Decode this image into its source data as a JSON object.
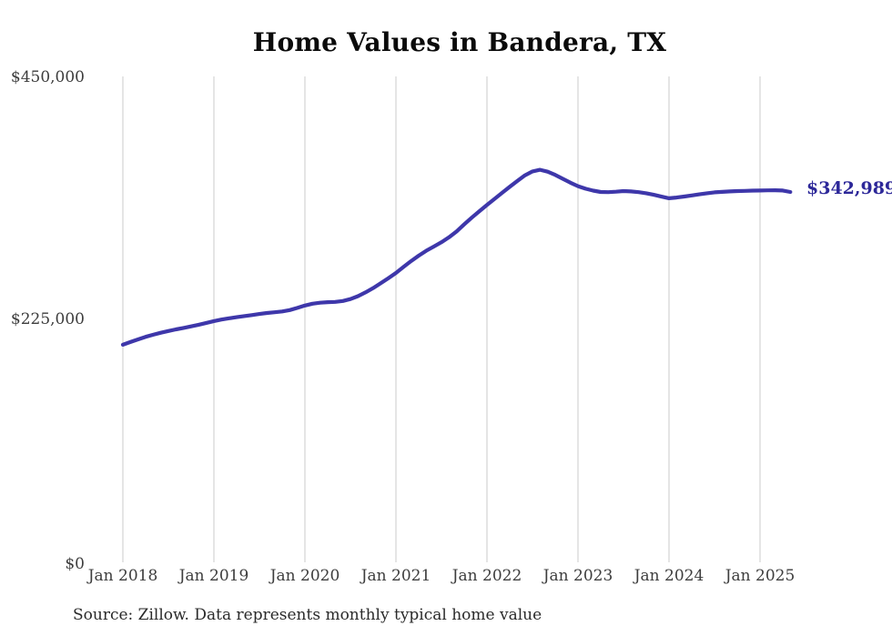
{
  "chart_data": {
    "type": "line",
    "title": "Home Values in Bandera, TX",
    "source_note": "Source: Zillow. Data represents monthly typical home value",
    "end_label": "$342,989",
    "latest_value": 342989,
    "ylim": [
      0,
      450000
    ],
    "y_tick_labels": [
      "$0",
      "$225,000",
      "$450,000"
    ],
    "x_tick_labels": [
      "Jan 2018",
      "Jan 2019",
      "Jan 2020",
      "Jan 2021",
      "Jan 2022",
      "Jan 2023",
      "Jan 2024",
      "Jan 2025"
    ],
    "grid": "vertical-only",
    "legend": "none",
    "colors": {
      "line": "#3e37aa",
      "end_label": "#2d2899",
      "gridline": "#cbcbcb",
      "tick_text": "#3d3d3d"
    },
    "series": [
      {
        "name": "Typical home value (USD)",
        "start": "2018-01",
        "interval": "monthly",
        "end": "2025-05",
        "values": [
          201500,
          204000,
          206500,
          208800,
          210800,
          212600,
          214200,
          215700,
          217100,
          218500,
          220000,
          221700,
          223400,
          224800,
          226000,
          227000,
          228000,
          229000,
          230000,
          230900,
          231600,
          232300,
          233600,
          235600,
          237800,
          239500,
          240400,
          240900,
          241200,
          242000,
          243800,
          246500,
          250000,
          254000,
          258500,
          263200,
          268000,
          273500,
          279000,
          284000,
          288500,
          292500,
          296500,
          301000,
          306500,
          313000,
          319200,
          325200,
          331000,
          336600,
          342200,
          347800,
          353200,
          358400,
          362000,
          363500,
          361800,
          358800,
          355200,
          351600,
          348400,
          346000,
          344200,
          343000,
          342800,
          343200,
          343800,
          343500,
          342800,
          341800,
          340400,
          338700,
          337200,
          337800,
          338800,
          339800,
          340800,
          341800,
          342600,
          343100,
          343500,
          343800,
          344000,
          344200,
          344300,
          344500,
          344600,
          344300,
          342989
        ]
      }
    ]
  }
}
